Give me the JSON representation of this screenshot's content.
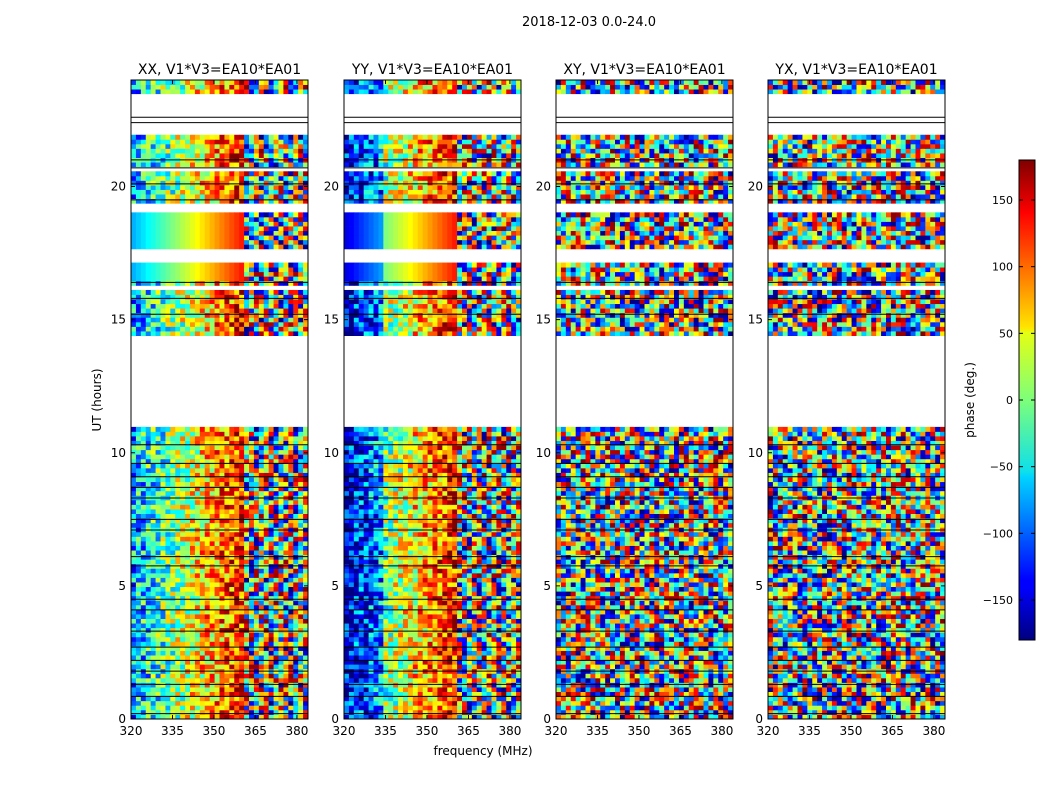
{
  "figure": {
    "suptitle": "2018-12-03 0.0-24.0",
    "xlabel": "frequency (MHz)",
    "ylabel": "UT (hours)"
  },
  "colorbar": {
    "label": "phase (deg.)",
    "ticks": [
      150,
      100,
      50,
      0,
      -50,
      -100,
      -150
    ],
    "range": [
      -180,
      180
    ],
    "colormap": "jet"
  },
  "chart_data": [
    {
      "type": "heatmap",
      "title": "XX, V1*V3=EA10*EA01",
      "xlabel": "frequency (MHz)",
      "ylabel": "UT (hours)",
      "xlim": [
        320,
        384
      ],
      "ylim": [
        0,
        24
      ],
      "xticks": [
        320,
        335,
        350,
        365,
        380
      ],
      "yticks": [
        0,
        5,
        10,
        15,
        20
      ],
      "pattern": "coherent_gradient"
    },
    {
      "type": "heatmap",
      "title": "YY, V1*V3=EA10*EA01",
      "xlabel": "frequency (MHz)",
      "ylabel": "UT (hours)",
      "xlim": [
        320,
        384
      ],
      "ylim": [
        0,
        24
      ],
      "xticks": [
        320,
        335,
        350,
        365,
        380
      ],
      "yticks": [
        0,
        5,
        10,
        15,
        20
      ],
      "pattern": "coherent_gradient"
    },
    {
      "type": "heatmap",
      "title": "XY, V1*V3=EA10*EA01",
      "xlabel": "frequency (MHz)",
      "ylabel": "UT (hours)",
      "xlim": [
        320,
        384
      ],
      "ylim": [
        0,
        24
      ],
      "xticks": [
        320,
        335,
        350,
        365,
        380
      ],
      "yticks": [
        0,
        5,
        10,
        15,
        20
      ],
      "pattern": "noise"
    },
    {
      "type": "heatmap",
      "title": "YX, V1*V3=EA10*EA01",
      "xlabel": "frequency (MHz)",
      "ylabel": "UT (hours)",
      "xlim": [
        320,
        384
      ],
      "ylim": [
        0,
        24
      ],
      "xticks": [
        320,
        335,
        350,
        365,
        380
      ],
      "yticks": [
        0,
        5,
        10,
        15,
        20
      ],
      "pattern": "noise"
    }
  ]
}
